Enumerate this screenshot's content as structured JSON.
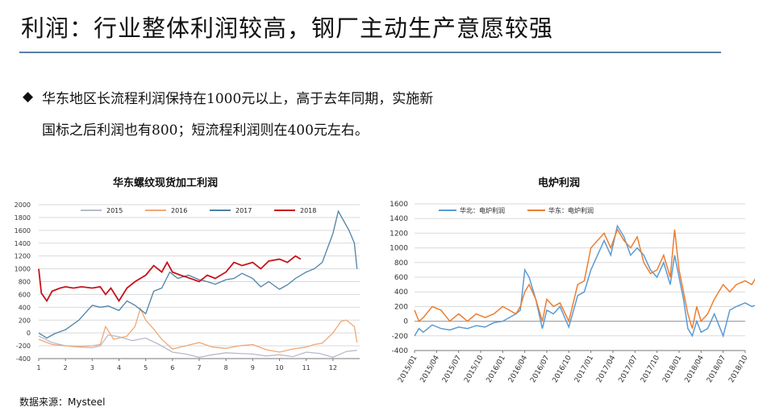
{
  "header": {
    "title": "利润：行业整体利润较高，钢厂主动生产意愿较强",
    "bullet_symbol": "◆",
    "line1": "华东地区长流程利润保持在1000元以上，高于去年同期，实施新",
    "line2": "国标之后利润也有800；短流程利润则在400元左右。",
    "source": "数据来源：Mysteel"
  },
  "chart_data": [
    {
      "type": "line",
      "title": "华东螺纹现货加工利润",
      "x_ticks": [
        "1",
        "2",
        "3",
        "4",
        "5",
        "6",
        "7",
        "8",
        "9",
        "10",
        "11",
        "12"
      ],
      "xlim": [
        1,
        13
      ],
      "ylim": [
        -400,
        2000
      ],
      "y_ticks": [
        -400,
        -200,
        0,
        200,
        400,
        600,
        800,
        1000,
        1200,
        1400,
        1600,
        1800,
        2000
      ],
      "legend_position": "top",
      "series": [
        {
          "name": "2015",
          "color": "#b5bcc9",
          "x": [
            1,
            1.5,
            2,
            2.5,
            3,
            3.3,
            3.6,
            4,
            4.5,
            5,
            5.5,
            6,
            6.5,
            7,
            7.5,
            8,
            8.5,
            9,
            9.5,
            10,
            10.5,
            11,
            11.5,
            12,
            12.5,
            12.9
          ],
          "y": [
            -50,
            -150,
            -200,
            -220,
            -230,
            -200,
            -30,
            -60,
            -120,
            -80,
            -180,
            -300,
            -330,
            -380,
            -340,
            -310,
            -320,
            -330,
            -360,
            -340,
            -370,
            -300,
            -320,
            -380,
            -290,
            -270
          ]
        },
        {
          "name": "2016",
          "color": "#f0a774",
          "x": [
            1,
            1.5,
            2,
            2.5,
            3,
            3.3,
            3.5,
            3.8,
            4,
            4.3,
            4.6,
            4.8,
            5,
            5.3,
            5.6,
            6,
            6.5,
            7,
            7.5,
            8,
            8.5,
            9,
            9.5,
            10,
            10.5,
            11,
            11.3,
            11.6,
            12,
            12.3,
            12.5,
            12.8,
            12.9
          ],
          "y": [
            -100,
            -180,
            -200,
            -210,
            -200,
            -180,
            100,
            -100,
            -80,
            -50,
            100,
            380,
            200,
            60,
            -100,
            -250,
            -200,
            -150,
            -220,
            -240,
            -200,
            -180,
            -260,
            -300,
            -250,
            -220,
            -180,
            -160,
            0,
            180,
            200,
            100,
            -150
          ]
        },
        {
          "name": "2017",
          "color": "#4f81a4",
          "x": [
            1,
            1.3,
            1.6,
            2,
            2.5,
            3,
            3.3,
            3.6,
            4,
            4.3,
            4.6,
            5,
            5.3,
            5.6,
            5.9,
            6.2,
            6.6,
            7,
            7.3,
            7.6,
            8,
            8.3,
            8.6,
            9,
            9.3,
            9.6,
            10,
            10.3,
            10.6,
            11,
            11.3,
            11.6,
            12,
            12.2,
            12.4,
            12.6,
            12.8,
            12.9
          ],
          "y": [
            0,
            -80,
            -10,
            50,
            200,
            430,
            400,
            420,
            350,
            500,
            430,
            300,
            650,
            700,
            950,
            850,
            900,
            830,
            800,
            760,
            830,
            850,
            930,
            850,
            720,
            800,
            680,
            750,
            850,
            950,
            1000,
            1100,
            1550,
            1900,
            1750,
            1600,
            1400,
            1000
          ]
        },
        {
          "name": "2018",
          "color": "#c7131a",
          "x": [
            1,
            1.1,
            1.3,
            1.5,
            1.8,
            2,
            2.3,
            2.6,
            3,
            3.3,
            3.5,
            3.7,
            4,
            4.3,
            4.6,
            5,
            5.3,
            5.6,
            5.8,
            6,
            6.3,
            6.6,
            7,
            7.3,
            7.6,
            8,
            8.3,
            8.6,
            9,
            9.3,
            9.6,
            10,
            10.3,
            10.6,
            10.8
          ],
          "y": [
            1000,
            620,
            500,
            650,
            700,
            720,
            700,
            720,
            700,
            720,
            600,
            700,
            500,
            700,
            800,
            900,
            1050,
            950,
            1100,
            950,
            900,
            860,
            800,
            900,
            850,
            950,
            1100,
            1050,
            1100,
            1000,
            1120,
            1150,
            1100,
            1200,
            1150
          ]
        }
      ]
    },
    {
      "type": "line",
      "title": "电炉利润",
      "ylim": [
        -400,
        1600
      ],
      "y_ticks": [
        -400,
        -200,
        0,
        200,
        400,
        600,
        800,
        1000,
        1200,
        1400,
        1600
      ],
      "x_ticks": [
        "2015/01",
        "2015/04",
        "2015/07",
        "2015/10",
        "2016/01",
        "2016/04",
        "2016/07",
        "2016/10",
        "2017/01",
        "2017/04",
        "2017/07",
        "2017/10",
        "2018/01",
        "2018/04",
        "2018/07",
        "2018/10"
      ],
      "legend_position": "top-left",
      "series": [
        {
          "name": "华北：电炉利润",
          "color": "#5b9bd5",
          "x": [
            0,
            0.2,
            0.4,
            0.8,
            1.2,
            1.6,
            2,
            2.4,
            2.8,
            3.2,
            3.6,
            4,
            4.3,
            4.6,
            4.8,
            5,
            5.2,
            5.5,
            5.8,
            6,
            6.3,
            6.6,
            7,
            7.4,
            7.7,
            8,
            8.3,
            8.6,
            8.9,
            9.2,
            9.5,
            9.8,
            10.1,
            10.4,
            10.7,
            11,
            11.3,
            11.6,
            11.8,
            12,
            12.2,
            12.4,
            12.6,
            12.8,
            13,
            13.3,
            13.6,
            14,
            14.3,
            14.6,
            15,
            15.3,
            15.5
          ],
          "y": [
            -200,
            -100,
            -150,
            -50,
            -100,
            -120,
            -80,
            -100,
            -60,
            -80,
            -20,
            0,
            50,
            100,
            150,
            700,
            600,
            300,
            -100,
            150,
            100,
            200,
            -80,
            350,
            400,
            700,
            900,
            1100,
            900,
            1300,
            1150,
            900,
            1000,
            900,
            700,
            600,
            800,
            500,
            900,
            600,
            300,
            -100,
            -200,
            0,
            -150,
            -100,
            100,
            -200,
            150,
            200,
            250,
            200,
            220
          ]
        },
        {
          "name": "华东：电炉利润",
          "color": "#ed7d31",
          "x": [
            0,
            0.2,
            0.4,
            0.8,
            1.2,
            1.6,
            2,
            2.4,
            2.8,
            3.2,
            3.6,
            4,
            4.3,
            4.6,
            4.8,
            5,
            5.2,
            5.5,
            5.8,
            6,
            6.3,
            6.6,
            7,
            7.4,
            7.7,
            8,
            8.3,
            8.6,
            8.9,
            9.2,
            9.5,
            9.8,
            10.1,
            10.4,
            10.7,
            11,
            11.3,
            11.6,
            11.8,
            12,
            12.2,
            12.4,
            12.6,
            12.8,
            13,
            13.3,
            13.6,
            14,
            14.3,
            14.6,
            15,
            15.3,
            15.5
          ],
          "y": [
            150,
            0,
            50,
            200,
            150,
            0,
            100,
            0,
            100,
            50,
            100,
            200,
            150,
            100,
            200,
            400,
            500,
            300,
            0,
            300,
            200,
            250,
            0,
            500,
            550,
            1000,
            1100,
            1200,
            1000,
            1250,
            1100,
            1000,
            1150,
            800,
            650,
            700,
            900,
            600,
            1250,
            700,
            400,
            100,
            -100,
            200,
            0,
            100,
            300,
            500,
            400,
            500,
            550,
            500,
            600
          ]
        }
      ]
    }
  ]
}
